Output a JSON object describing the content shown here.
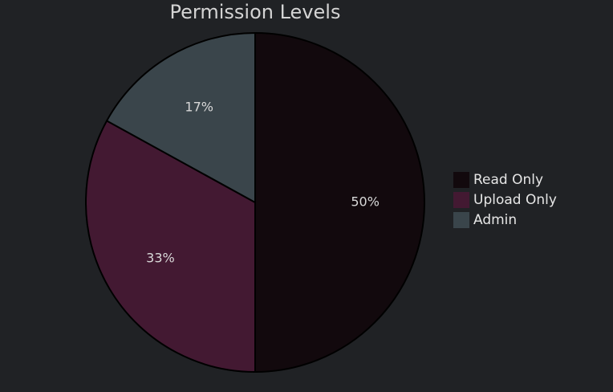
{
  "chart_data": {
    "type": "pie",
    "title": "Permission Levels",
    "legend_position": "right",
    "slices": [
      {
        "label": "Read Only",
        "value": 50,
        "display": "50%",
        "color": "#12090d"
      },
      {
        "label": "Upload Only",
        "value": 33,
        "display": "33%",
        "color": "#431932"
      },
      {
        "label": "Admin",
        "value": 17,
        "display": "17%",
        "color": "#3a454b"
      }
    ],
    "background_color": "#202225",
    "border_color": "#000000"
  }
}
